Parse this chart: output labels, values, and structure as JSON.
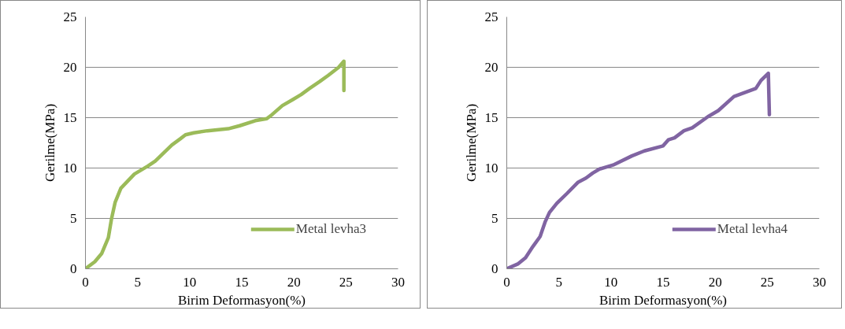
{
  "chart_data": [
    {
      "type": "line",
      "xlabel": "Birim Deformasyon(%)",
      "ylabel": "Gerilme(MPa)",
      "xlim": [
        0,
        30
      ],
      "ylim": [
        0,
        25
      ],
      "xticks": [
        0,
        5,
        10,
        15,
        20,
        25,
        30
      ],
      "yticks": [
        0,
        5,
        10,
        15,
        20,
        25
      ],
      "grid": "y",
      "legend": "bottom right",
      "marker": "none",
      "line_style": "solid",
      "series": [
        {
          "name": "Metal levha3",
          "color": "#9bbb59",
          "x": [
            0,
            0.9,
            1.55,
            2.2,
            2.5,
            2.85,
            3.4,
            4.7,
            6.0,
            6.7,
            7.5,
            8.3,
            9.1,
            9.6,
            10.4,
            11.7,
            13.7,
            14.8,
            16.3,
            17.4,
            17.9,
            18.9,
            19.9,
            20.7,
            21.5,
            22.5,
            23.3,
            24.3,
            24.8,
            24.8
          ],
          "values": [
            0,
            0.7,
            1.5,
            3.1,
            4.95,
            6.6,
            8.0,
            9.4,
            10.2,
            10.7,
            11.5,
            12.3,
            12.9,
            13.3,
            13.5,
            13.7,
            13.9,
            14.2,
            14.7,
            14.9,
            15.3,
            16.2,
            16.8,
            17.3,
            17.9,
            18.6,
            19.2,
            20.0,
            20.6,
            17.7
          ]
        }
      ]
    },
    {
      "type": "line",
      "xlabel": "Birim Deformasyon(%)",
      "ylabel": "Gerilme(MPa)",
      "xlim": [
        0,
        30
      ],
      "ylim": [
        0,
        25
      ],
      "xticks": [
        0,
        5,
        10,
        15,
        20,
        25,
        30
      ],
      "yticks": [
        0,
        5,
        10,
        15,
        20,
        25
      ],
      "grid": "y",
      "legend": "bottom right",
      "marker": "none",
      "line_style": "solid",
      "series": [
        {
          "name": "Metal levha4",
          "color": "#8064a2",
          "x": [
            0,
            1.1,
            1.8,
            2.5,
            3.2,
            3.7,
            4.1,
            4.8,
            5.8,
            6.85,
            7.6,
            8.25,
            8.9,
            10.2,
            12.0,
            13.2,
            15.0,
            15.5,
            16.1,
            17.0,
            17.8,
            19.3,
            20.3,
            21.8,
            23.9,
            24.4,
            25.1,
            25.2
          ],
          "values": [
            0,
            0.5,
            1.1,
            2.2,
            3.2,
            4.7,
            5.6,
            6.5,
            7.5,
            8.6,
            9.0,
            9.5,
            9.9,
            10.3,
            11.2,
            11.7,
            12.2,
            12.8,
            13.0,
            13.7,
            14.0,
            15.1,
            15.7,
            17.1,
            17.9,
            18.7,
            19.4,
            15.3
          ]
        }
      ]
    }
  ]
}
